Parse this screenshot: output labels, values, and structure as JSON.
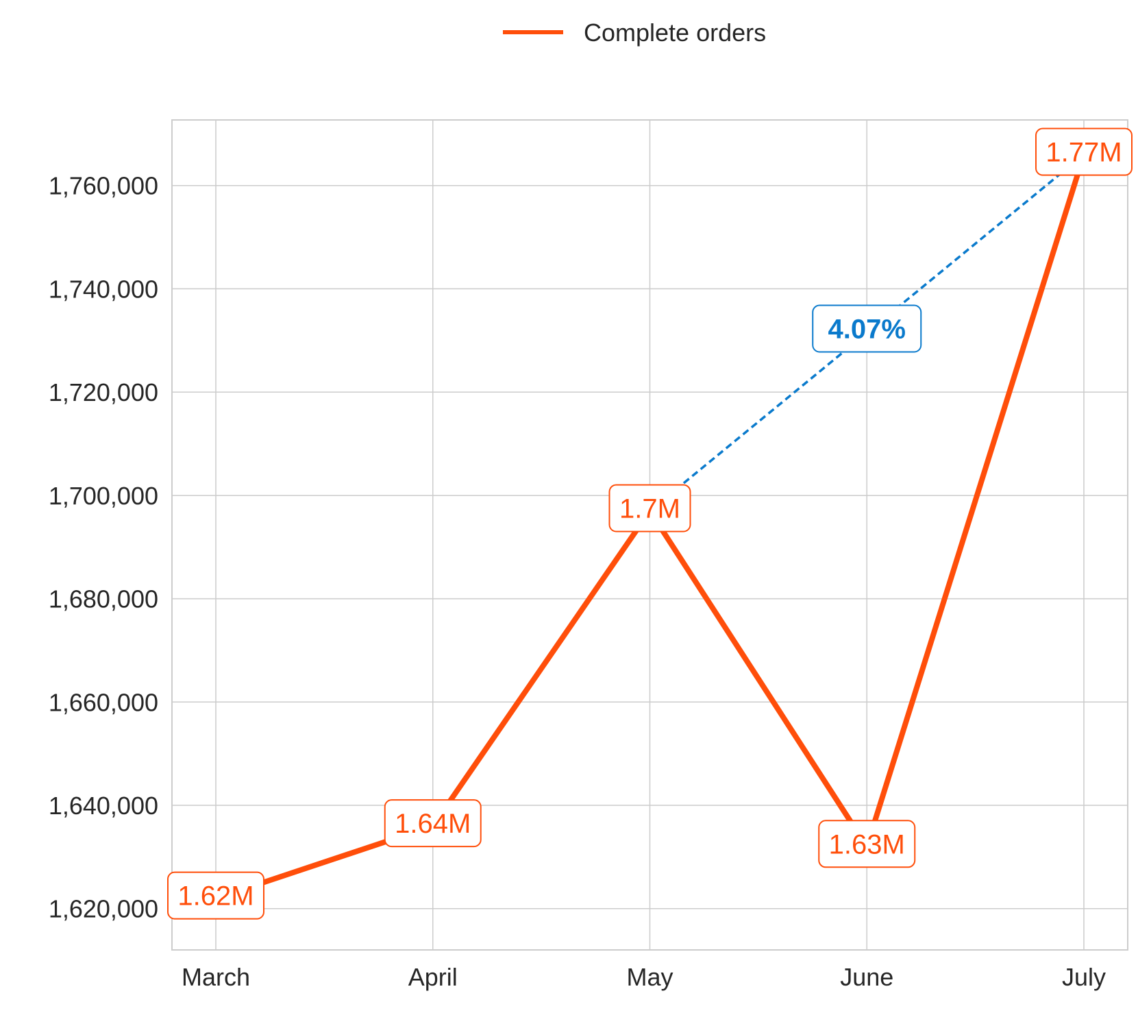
{
  "chart_data": {
    "type": "line",
    "title": "",
    "xlabel": "",
    "ylabel": "",
    "categories": [
      "March",
      "April",
      "May",
      "June",
      "July"
    ],
    "series": [
      {
        "name": "Complete orders",
        "values": [
          1622000,
          1636000,
          1697000,
          1632000,
          1766000
        ],
        "labels": [
          "1.62M",
          "1.64M",
          "1.7M",
          "1.63M",
          "1.77M"
        ],
        "color": "#FF4E0A"
      }
    ],
    "yticks": [
      1620000,
      1640000,
      1660000,
      1680000,
      1700000,
      1720000,
      1740000,
      1760000
    ],
    "ytick_labels": [
      "1,620,000",
      "1,640,000",
      "1,660,000",
      "1,680,000",
      "1,700,000",
      "1,720,000",
      "1,740,000",
      "1,760,000"
    ],
    "ylim": [
      1612000,
      1772700
    ],
    "grid": true,
    "legend": "top-center",
    "annotation": {
      "text": "4.07%",
      "from_category": "May",
      "to_category": "July",
      "color": "#0A7ACC",
      "style": "dashed"
    }
  }
}
